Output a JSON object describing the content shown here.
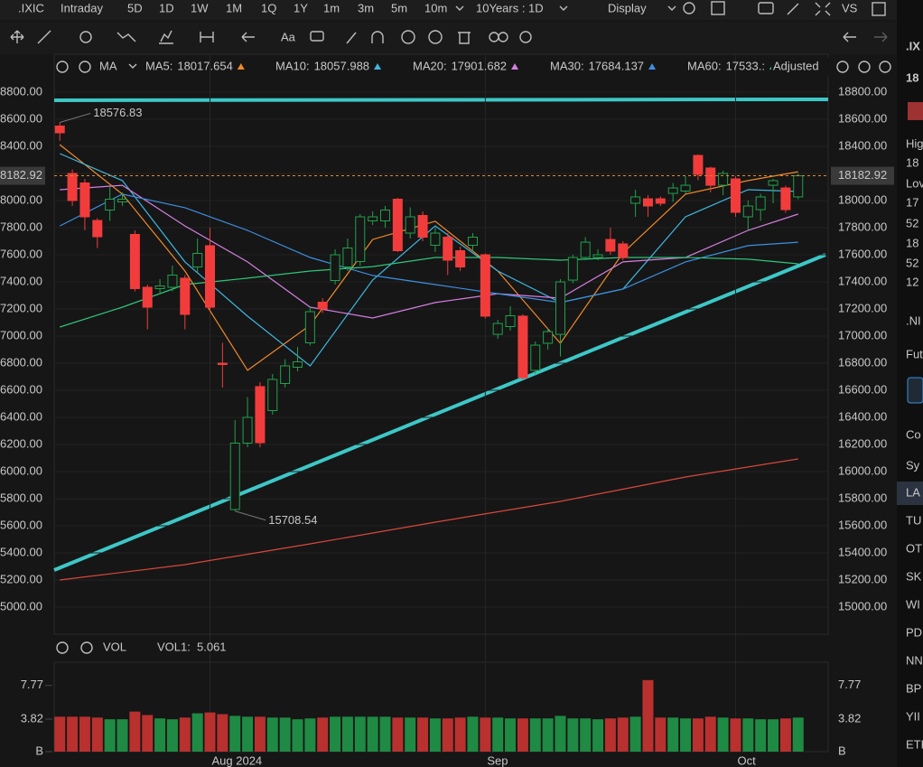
{
  "toolbar": {
    "symbol": ".IXIC",
    "periods": [
      "Intraday",
      "5D",
      "1D",
      "1W",
      "1M",
      "1Q",
      "1Y",
      "1m",
      "3m",
      "5m",
      "10m"
    ],
    "selected": "1D",
    "selected_color": "#f5a623",
    "range": "10Years : 1D",
    "display": "Display",
    "compare": "VS",
    "text_tool": "Aa"
  },
  "indicator_bar": {
    "name": "MA",
    "adjusted": "Adjusted",
    "items": [
      {
        "name": "MA5:",
        "value": 18017.654,
        "color": "#f0892b"
      },
      {
        "name": "MA10:",
        "value": 18057.988,
        "color": "#3fb6e0"
      },
      {
        "name": "MA20:",
        "value": 17901.682,
        "color": "#d57ee0"
      },
      {
        "name": "MA30:",
        "value": 17684.137,
        "color": "#3d8fe0"
      },
      {
        "name": "MA60:",
        "value": 17533,
        "value_label": "17533.:",
        "color": "#2fc47a"
      }
    ]
  },
  "chart_data": {
    "type": "candlestick",
    "up_color": "#22a04b",
    "down_color": "#f23c3c",
    "open": [
      18550,
      18200,
      18130,
      17853,
      17930,
      17990,
      17750,
      17360,
      17350,
      17360,
      17427,
      17510,
      17667,
      16800,
      15720,
      16210,
      16627,
      16450,
      16650,
      16770,
      16950,
      17250,
      17410,
      17510,
      17550,
      17850,
      17850,
      18010,
      17760,
      17890,
      17670,
      17730,
      17630,
      17670,
      17600,
      17013,
      17070,
      17147,
      16747,
      16947,
      17013,
      17413,
      17580,
      17580,
      17713,
      17680,
      17980,
      18013,
      18013,
      18053,
      18070,
      18333,
      18240,
      18113,
      18160,
      17880,
      17933,
      18113,
      18093,
      18027
    ],
    "high": [
      18576.83,
      18230,
      18160,
      17870,
      18100,
      18060,
      17780,
      17380,
      17420,
      17520,
      17450,
      17720,
      17800,
      16950,
      16380,
      16550,
      16660,
      16720,
      16830,
      16920,
      17220,
      17280,
      17640,
      17720,
      17900,
      17920,
      17960,
      18020,
      17950,
      17920,
      17800,
      17760,
      17660,
      17760,
      17610,
      17120,
      17220,
      17160,
      16960,
      17060,
      17420,
      17600,
      17730,
      17640,
      17800,
      17700,
      18080,
      18040,
      18030,
      18130,
      18180,
      18340,
      18250,
      18220,
      18180,
      18000,
      18050,
      18160,
      18110,
      18200
    ],
    "low": [
      18440,
      17960,
      17780,
      17650,
      17850,
      17960,
      17330,
      17050,
      17320,
      17330,
      17050,
      17470,
      17180,
      16620,
      15708.54,
      16180,
      16180,
      16420,
      16620,
      16740,
      16930,
      17170,
      17380,
      17480,
      17520,
      17820,
      17800,
      17620,
      17720,
      17700,
      17620,
      17450,
      17480,
      17620,
      17130,
      16980,
      17040,
      16680,
      16720,
      16900,
      16850,
      17390,
      17560,
      17560,
      17600,
      17560,
      17880,
      17880,
      17960,
      17990,
      18050,
      18150,
      18060,
      18040,
      17880,
      17780,
      17850,
      17980,
      17910,
      18010
    ],
    "close": [
      18500,
      18000,
      17880,
      17733,
      18010,
      18010,
      17350,
      17213,
      17370,
      17450,
      17160,
      17610,
      17213,
      16790,
      16210,
      16400,
      16213,
      16680,
      16780,
      16810,
      17180,
      17200,
      17600,
      17650,
      17880,
      17880,
      17930,
      17630,
      17880,
      17730,
      17760,
      17560,
      17510,
      17730,
      17147,
      17093,
      17150,
      16693,
      16933,
      17033,
      17400,
      17580,
      17693,
      17600,
      17627,
      17580,
      18027,
      17960,
      17980,
      18093,
      18113,
      18193,
      18113,
      18200,
      17913,
      17960,
      18027,
      18147,
      17933,
      18182.92
    ],
    "last_line_color": "#e08a2b",
    "ylim": [
      14800,
      19080
    ],
    "yticks": [
      {
        "value": 15000,
        "label": "15000.00"
      },
      {
        "value": 15200,
        "label": "15200.00"
      },
      {
        "value": 15400,
        "label": "15400.00"
      },
      {
        "value": 15600,
        "label": "15600.00"
      },
      {
        "value": 15800,
        "label": "15800.00"
      },
      {
        "value": 16000,
        "label": "16000.00"
      },
      {
        "value": 16200,
        "label": "16200.00"
      },
      {
        "value": 16400,
        "label": "16400.00"
      },
      {
        "value": 16600,
        "label": "16600.00"
      },
      {
        "value": 16800,
        "label": "16800.00"
      },
      {
        "value": 17000,
        "label": "17000.00"
      },
      {
        "value": 17200,
        "label": "17200.00"
      },
      {
        "value": 17400,
        "label": "17400.00"
      },
      {
        "value": 17600,
        "label": "17600.00"
      },
      {
        "value": 17800,
        "label": "17800.00"
      },
      {
        "value": 18000,
        "label": "18000.00"
      },
      {
        "value": 18200,
        "label": "18200.00"
      },
      {
        "value": 18400,
        "label": "18400.00"
      },
      {
        "value": 18600,
        "label": "18600.00"
      },
      {
        "value": 18800,
        "label": "18800.00"
      }
    ],
    "xlim": [
      -0.45,
      61.4
    ],
    "xticks": [
      {
        "value": 12,
        "label": "Aug 2024"
      },
      {
        "value": 34,
        "label": "Sep"
      },
      {
        "value": 54,
        "label": "Oct"
      }
    ],
    "series": [
      {
        "name": "MA5",
        "color": "#f0892b",
        "x": [
          0,
          5,
          10,
          15,
          20,
          25,
          30,
          35,
          40,
          45,
          50,
          55,
          59
        ],
        "values": [
          18413,
          18047,
          17480,
          16747,
          17080,
          17713,
          17847,
          17480,
          16947,
          17613,
          18047,
          18147,
          18213
        ]
      },
      {
        "name": "MA10",
        "color": "#3fb6e0",
        "x": [
          0,
          5,
          10,
          15,
          20,
          25,
          30,
          35,
          40,
          45,
          50,
          55,
          59
        ],
        "values": [
          18347,
          18147,
          17547,
          17147,
          16780,
          17413,
          17813,
          17480,
          17247,
          17347,
          17880,
          18080,
          18067
        ]
      },
      {
        "name": "MA20",
        "color": "#d57ee0",
        "x": [
          0,
          5,
          10,
          15,
          20,
          25,
          30,
          35,
          40,
          45,
          50,
          55,
          59
        ],
        "values": [
          18080,
          18113,
          17813,
          17547,
          17213,
          17133,
          17247,
          17313,
          17280,
          17547,
          17580,
          17780,
          17900
        ]
      },
      {
        "name": "MA30",
        "color": "#3d8fe0",
        "x": [
          0,
          5,
          10,
          15,
          20,
          25,
          30,
          35,
          40,
          45,
          50,
          55,
          59
        ],
        "values": [
          17813,
          18047,
          17947,
          17780,
          17580,
          17447,
          17380,
          17313,
          17247,
          17347,
          17547,
          17667,
          17693
        ]
      },
      {
        "name": "MA60",
        "color": "#2fc47a",
        "x": [
          0,
          5,
          10,
          15,
          20,
          25,
          30,
          35,
          40,
          45,
          50,
          55,
          59
        ],
        "values": [
          17067,
          17213,
          17380,
          17427,
          17480,
          17513,
          17580,
          17580,
          17560,
          17580,
          17580,
          17567,
          17533
        ]
      },
      {
        "color": "#d9483b",
        "x": [
          0,
          10,
          20,
          30,
          40,
          50,
          59
        ],
        "values": [
          15200,
          15313,
          15467,
          15627,
          15780,
          15960,
          16093
        ]
      }
    ],
    "volume": {
      "name": "VOL",
      "indicator": "VOL1:",
      "indicator_value": 5.061,
      "indicator_color": "#f25c5c",
      "values": [
        4.1,
        4.1,
        4.1,
        4.0,
        3.8,
        3.8,
        4.7,
        4.3,
        3.9,
        3.8,
        4.0,
        4.5,
        4.6,
        4.4,
        4.2,
        4.1,
        4.1,
        4.0,
        4.0,
        3.8,
        3.9,
        4.0,
        4.1,
        4.1,
        4.1,
        4.1,
        4.1,
        4.0,
        4.0,
        4.0,
        3.9,
        3.9,
        4.0,
        4.1,
        4.0,
        4.0,
        3.9,
        3.9,
        3.9,
        3.9,
        4.2,
        3.9,
        3.9,
        3.8,
        3.9,
        4.0,
        4.1,
        8.4,
        4.0,
        4.0,
        3.9,
        3.9,
        4.1,
        4.0,
        3.9,
        3.9,
        3.8,
        3.8,
        3.9,
        4.0
      ],
      "up_color": "#1f8a43",
      "down_color": "#b8312f",
      "ylim": [
        0,
        10.5
      ],
      "yticks": [
        {
          "value": 0,
          "label": "B"
        },
        3.82,
        7.77
      ]
    }
  },
  "side_panel": {
    "items": [
      ".IX",
      "18",
      "Hig",
      "18",
      "Lov",
      "17",
      "52",
      "18",
      "52",
      "12",
      ".NI",
      "Fut",
      "Co",
      "Sy",
      "LA",
      "TU",
      "OT",
      "SK",
      "WI",
      "PD",
      "NN",
      "BP",
      "YII",
      "ETF"
    ]
  }
}
